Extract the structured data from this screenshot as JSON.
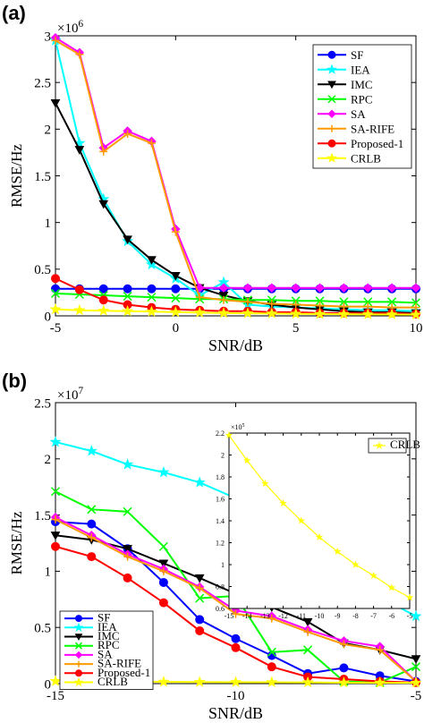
{
  "chart_data": [
    {
      "type": "line",
      "panel_label": "(a)",
      "xlabel": "SNR/dB",
      "ylabel": "RMSE/Hz",
      "y_exponent": "×10",
      "y_exponent_power": "6",
      "xlim": [
        -5,
        10
      ],
      "ylim": [
        0,
        3
      ],
      "y_scale": 1000000,
      "xticks": [
        -5,
        0,
        5,
        10
      ],
      "yticks": [
        0,
        0.5,
        1,
        1.5,
        2,
        2.5,
        3
      ],
      "xtick_labels": [
        "-5",
        "0",
        "5",
        "10"
      ],
      "ytick_labels": [
        "0",
        "0.5",
        "1",
        "1.5",
        "2",
        "2.5",
        "3"
      ],
      "x": [
        -5,
        -4,
        -3,
        -2,
        -1,
        0,
        1,
        2,
        3,
        4,
        5,
        6,
        7,
        8,
        9,
        10
      ],
      "legend_position": "top-right",
      "series": [
        {
          "name": "SF",
          "color": "#0000ff",
          "marker": "circle",
          "values": [
            0.29,
            0.29,
            0.29,
            0.29,
            0.29,
            0.29,
            0.29,
            0.29,
            0.29,
            0.29,
            0.29,
            0.29,
            0.29,
            0.29,
            0.29,
            0.29
          ]
        },
        {
          "name": "IEA",
          "color": "#00ffff",
          "marker": "star",
          "values": [
            2.95,
            1.85,
            1.25,
            0.8,
            0.55,
            0.4,
            0.22,
            0.36,
            0.12,
            0.1,
            0.09,
            0.08,
            0.07,
            0.06,
            0.06,
            0.05
          ]
        },
        {
          "name": "IMC",
          "color": "#000000",
          "marker": "triangle-down",
          "values": [
            2.28,
            1.78,
            1.2,
            0.82,
            0.6,
            0.43,
            0.3,
            0.22,
            0.16,
            0.12,
            0.09,
            0.07,
            0.05,
            0.04,
            0.04,
            0.03
          ]
        },
        {
          "name": "RPC",
          "color": "#00ff00",
          "marker": "x",
          "values": [
            0.24,
            0.23,
            0.22,
            0.21,
            0.2,
            0.19,
            0.18,
            0.18,
            0.17,
            0.17,
            0.16,
            0.16,
            0.15,
            0.15,
            0.15,
            0.14
          ]
        },
        {
          "name": "SA",
          "color": "#ff00ff",
          "marker": "diamond",
          "values": [
            2.98,
            2.82,
            1.8,
            1.98,
            1.87,
            0.93,
            0.3,
            0.3,
            0.3,
            0.3,
            0.3,
            0.3,
            0.3,
            0.3,
            0.3,
            0.3
          ]
        },
        {
          "name": "SA-RIFE",
          "color": "#ff9900",
          "marker": "plus",
          "values": [
            2.95,
            2.8,
            1.76,
            1.95,
            1.85,
            0.9,
            0.2,
            0.17,
            0.15,
            0.13,
            0.12,
            0.11,
            0.1,
            0.1,
            0.09,
            0.09
          ]
        },
        {
          "name": "Proposed-1",
          "color": "#ff0000",
          "marker": "circle",
          "values": [
            0.4,
            0.28,
            0.17,
            0.12,
            0.09,
            0.07,
            0.06,
            0.05,
            0.05,
            0.04,
            0.04,
            0.03,
            0.03,
            0.03,
            0.03,
            0.02
          ]
        },
        {
          "name": "CRLB",
          "color": "#ffff00",
          "marker": "star",
          "values": [
            0.07,
            0.06,
            0.055,
            0.05,
            0.045,
            0.04,
            0.035,
            0.03,
            0.028,
            0.025,
            0.022,
            0.02,
            0.018,
            0.016,
            0.015,
            0.013
          ]
        }
      ]
    },
    {
      "type": "line",
      "panel_label": "(b)",
      "xlabel": "SNR/dB",
      "ylabel": "RMSE/Hz",
      "y_exponent": "×10",
      "y_exponent_power": "7",
      "xlim": [
        -15,
        -5
      ],
      "ylim": [
        0,
        2.5
      ],
      "y_scale": 10000000,
      "xticks": [
        -15,
        -10,
        -5
      ],
      "yticks": [
        0,
        0.5,
        1,
        1.5,
        2,
        2.5
      ],
      "xtick_labels": [
        "-15",
        "-10",
        "-5"
      ],
      "ytick_labels": [
        "0",
        "0.5",
        "1",
        "1.5",
        "2",
        "2.5"
      ],
      "x": [
        -15,
        -14,
        -13,
        -12,
        -11,
        -10,
        -9,
        -8,
        -7,
        -6,
        -5
      ],
      "legend_position": "bottom-left",
      "series": [
        {
          "name": "SF",
          "color": "#0000ff",
          "marker": "circle",
          "values": [
            1.44,
            1.42,
            1.2,
            0.9,
            0.57,
            0.4,
            0.25,
            0.09,
            0.14,
            0.07,
            0.02
          ]
        },
        {
          "name": "IEA",
          "color": "#00ffff",
          "marker": "star",
          "values": [
            2.15,
            2.07,
            1.95,
            1.88,
            1.79,
            1.65,
            1.5,
            1.35,
            0.82,
            0.77,
            0.6
          ]
        },
        {
          "name": "IMC",
          "color": "#000000",
          "marker": "triangle-down",
          "values": [
            1.32,
            1.28,
            1.2,
            1.07,
            0.94,
            0.8,
            0.68,
            0.55,
            0.36,
            0.3,
            0.22
          ]
        },
        {
          "name": "RPC",
          "color": "#00ff00",
          "marker": "x",
          "values": [
            1.71,
            1.55,
            1.53,
            1.22,
            0.76,
            0.78,
            0.28,
            0.3,
            0.02,
            0.01,
            0.15
          ]
        },
        {
          "name": "SA",
          "color": "#ff00ff",
          "marker": "diamond",
          "values": [
            1.48,
            1.32,
            1.15,
            1.02,
            0.86,
            0.65,
            0.6,
            0.48,
            0.38,
            0.33,
            0.02
          ]
        },
        {
          "name": "SA-RIFE",
          "color": "#ff9900",
          "marker": "plus",
          "values": [
            1.46,
            1.3,
            1.13,
            1.0,
            0.85,
            0.62,
            0.58,
            0.46,
            0.35,
            0.3,
            0.02
          ]
        },
        {
          "name": "Proposed-1",
          "color": "#ff0000",
          "marker": "circle",
          "values": [
            1.22,
            1.13,
            0.94,
            0.72,
            0.47,
            0.32,
            0.15,
            0.06,
            0.04,
            0.02,
            0.01
          ]
        },
        {
          "name": "CRLB",
          "color": "#ffff00",
          "marker": "star",
          "values": [
            0.022,
            0.02,
            0.018,
            0.016,
            0.014,
            0.013,
            0.012,
            0.011,
            0.009,
            0.008,
            0.007
          ]
        }
      ]
    },
    {
      "type": "line",
      "panel_label": "",
      "xlabel": "",
      "ylabel": "",
      "y_exponent": "×10",
      "y_exponent_power": "5",
      "xlim": [
        -15,
        -5
      ],
      "ylim": [
        0.6,
        2.2
      ],
      "y_scale": 100000,
      "xticks": [
        -15,
        -14,
        -13,
        -12,
        -11,
        -10,
        -9,
        -8,
        -7,
        -6,
        -5
      ],
      "yticks": [
        0.6,
        0.8,
        1,
        1.2,
        1.4,
        1.6,
        1.8,
        2,
        2.2
      ],
      "xtick_labels": [
        "-15",
        "-14",
        "-13",
        "-12",
        "-11",
        "-10",
        "-9",
        "-8",
        "-7",
        "-6",
        "-5"
      ],
      "ytick_labels": [
        "0.6",
        "0.8",
        "1",
        "1.2",
        "1.4",
        "1.6",
        "1.8",
        "2",
        "2.2"
      ],
      "x": [
        -15,
        -14,
        -13,
        -12,
        -11,
        -10,
        -9,
        -8,
        -7,
        -6,
        -5
      ],
      "legend_position": "top-right",
      "series": [
        {
          "name": "CRLB",
          "color": "#ffff00",
          "marker": "star",
          "values": [
            2.18,
            1.95,
            1.74,
            1.56,
            1.4,
            1.25,
            1.12,
            1.0,
            0.9,
            0.79,
            0.7
          ]
        }
      ]
    }
  ]
}
